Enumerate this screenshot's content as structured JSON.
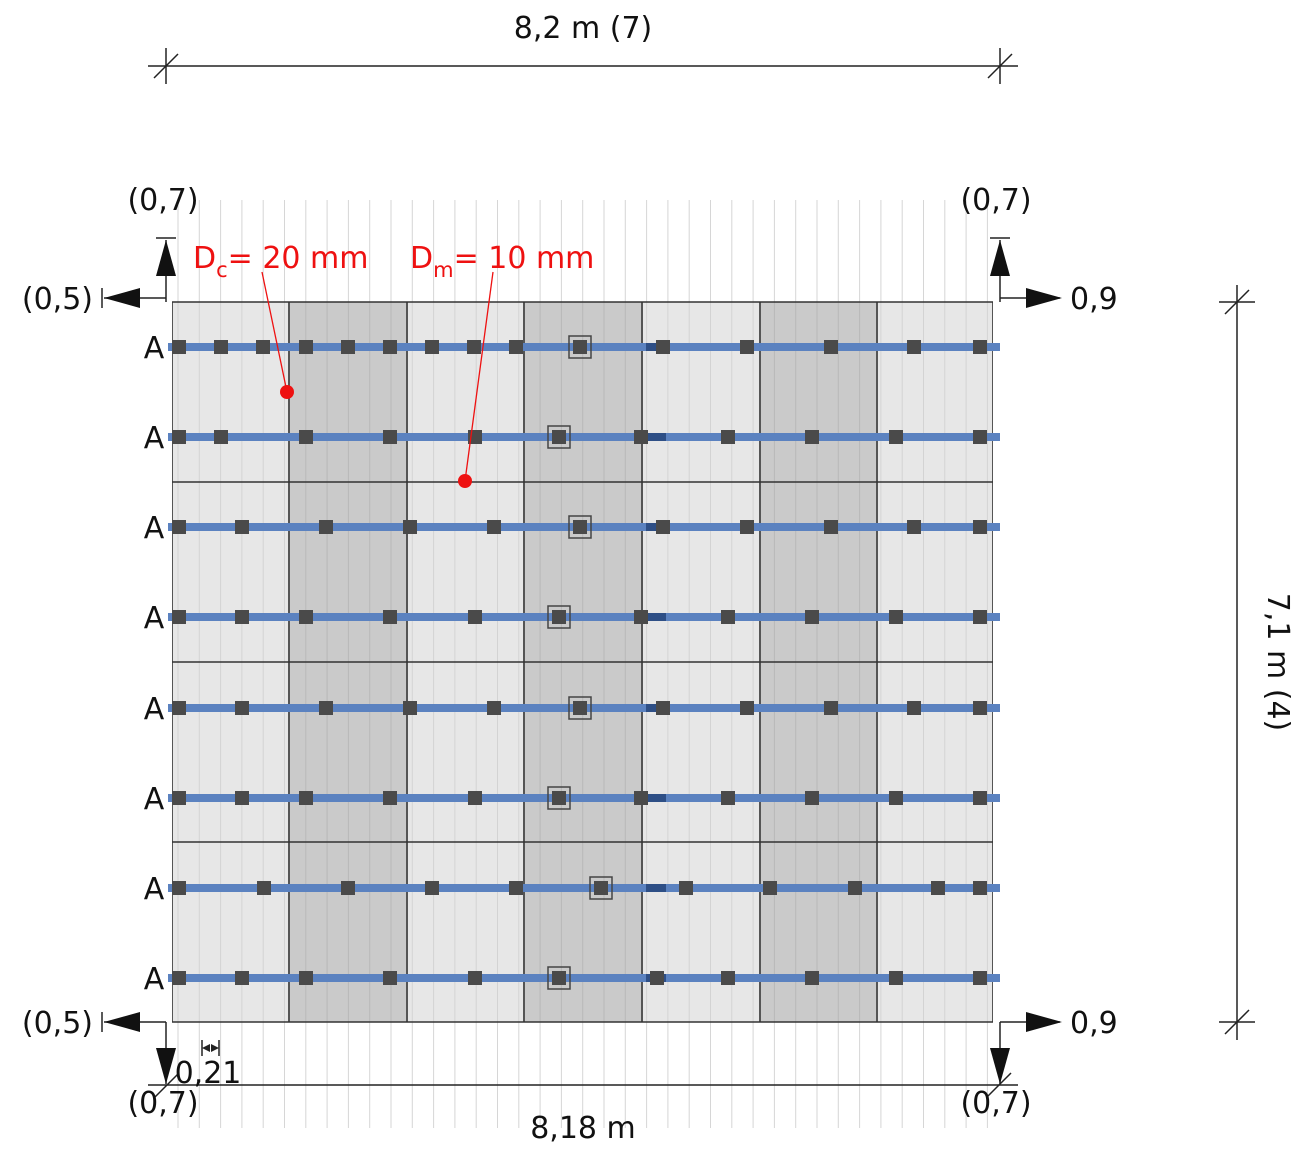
{
  "dimensions": {
    "top": "8,2 m (7)",
    "bottom": "8,18 m",
    "right": "7,1 m (4)",
    "offset": "0,21"
  },
  "corner_labels": {
    "top_left_up": "(0,7)",
    "top_left_side": "(0,5)",
    "top_right_up": "(0,7)",
    "top_right_side": "0,9",
    "bottom_left_down": "(0,7)",
    "bottom_left_side": "(0,5)",
    "bottom_right_down": "(0,7)",
    "bottom_right_side": "0,9"
  },
  "annotations": {
    "dc_symbol": "D",
    "dc_sub": "c",
    "dc_value": "= 20 mm",
    "dm_symbol": "D",
    "dm_sub": "m",
    "dm_value": "= 10 mm"
  },
  "row_label": "A",
  "colors": {
    "rail": "#5b82c0",
    "rail_joint": "#2e4f86",
    "clamp": "#4a4a4a",
    "panel_light": "#e3e3e3",
    "panel_dark": "#c1c1c1",
    "annotation": "#ee1111"
  },
  "module_grid": {
    "columns": 7,
    "module_rows": 4,
    "rail_rows": 8
  }
}
